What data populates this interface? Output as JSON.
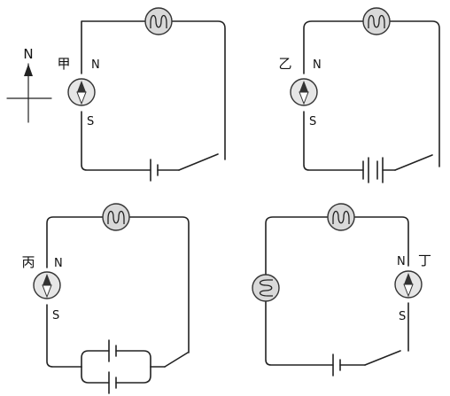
{
  "compass_direction_label": "N",
  "circuits": [
    {
      "id": "jia",
      "label": "甲",
      "needle_north_label": "N",
      "needle_south_label": "S",
      "battery_cells": 1,
      "battery_config": "single",
      "bulbs": 1
    },
    {
      "id": "yi",
      "label": "乙",
      "needle_north_label": "N",
      "needle_south_label": "S",
      "battery_cells": 2,
      "battery_config": "series",
      "bulbs": 1
    },
    {
      "id": "bing",
      "label": "丙",
      "needle_north_label": "N",
      "needle_south_label": "S",
      "battery_cells": 2,
      "battery_config": "parallel",
      "bulbs": 1
    },
    {
      "id": "ding",
      "label": "丁",
      "needle_north_label": "N",
      "needle_south_label": "S",
      "battery_cells": 1,
      "battery_config": "single",
      "bulbs": 2
    }
  ]
}
